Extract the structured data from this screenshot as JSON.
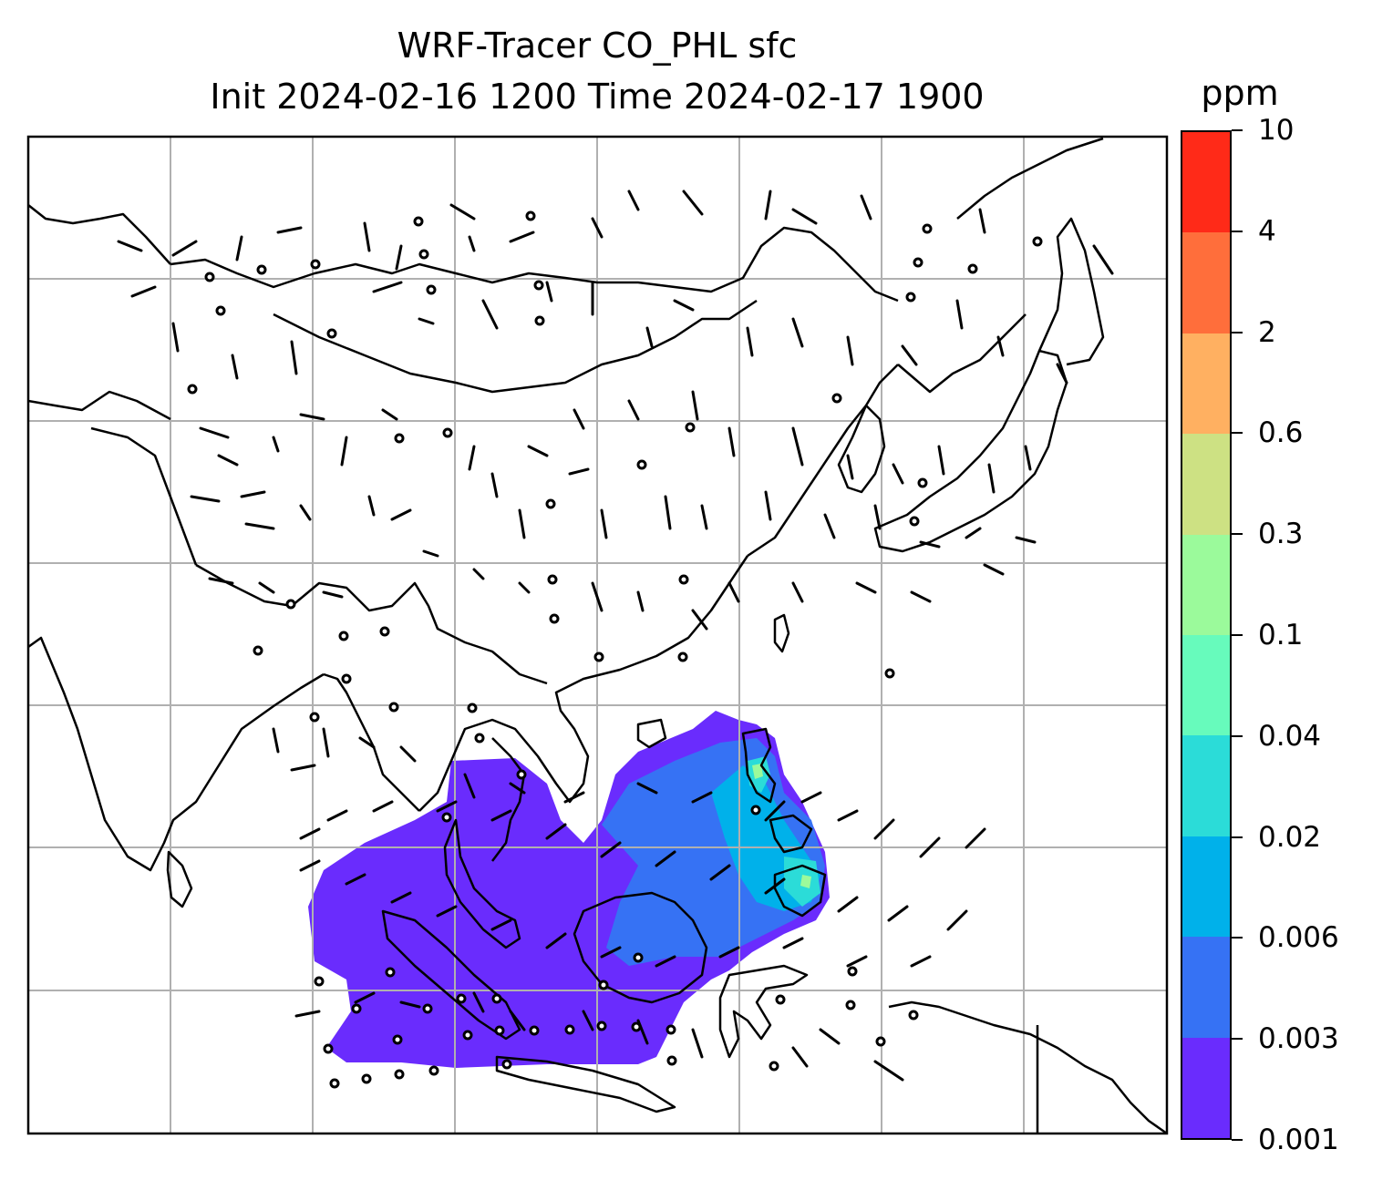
{
  "title_line1": "WRF-Tracer CO_PHL sfc",
  "title_line2": "Init 2024-02-16 1200 Time 2024-02-17 1900",
  "colorbar": {
    "unit": "ppm",
    "levels": [
      "0.001",
      "0.003",
      "0.006",
      "0.02",
      "0.04",
      "0.1",
      "0.3",
      "0.6",
      "2",
      "4",
      "10"
    ],
    "colors": [
      "#6a2cfd",
      "#3672f4",
      "#00b1ea",
      "#2bdcd8",
      "#67fbbc",
      "#9bfa9b",
      "#cde183",
      "#ffb061",
      "#ff6e3b",
      "#ff2a18"
    ]
  },
  "map": {
    "projection": "lat-lon plate carree",
    "region": "East / Southeast Asia, India to Japan and New Guinea",
    "gridlines": true,
    "gridline_color": "#b0b0b0",
    "coastline_color": "#000000",
    "tracer_field": "CO_PHL",
    "wind_barbs": true
  }
}
